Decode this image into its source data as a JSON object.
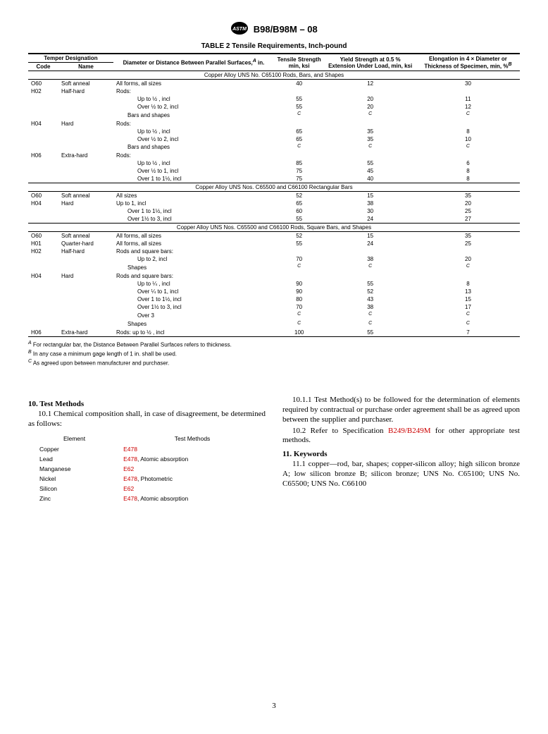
{
  "doc_title": "B98/B98M – 08",
  "table_title": "TABLE 2 Tensile Requirements, Inch-pound",
  "headers": {
    "temper": "Temper Designation",
    "code": "Code",
    "name": "Name",
    "diameter": "Diameter or Distance Between Parallel Surfaces,",
    "diameter_sup": "A",
    "diameter_unit": " in.",
    "tensile": "Tensile Strength min, ksi",
    "yield": "Yield Strength at 0.5 % Extension Under Load, min, ksi",
    "elong": "Elongation in 4 × Diameter or Thickness of Specimen, min, %",
    "elong_sup": "B"
  },
  "sections": [
    {
      "title": "Copper Alloy UNS No. C65100 Rods, Bars, and Shapes",
      "rows": [
        {
          "code": "O60",
          "name": "Soft anneal",
          "desc": "All forms, all sizes",
          "indent": 0,
          "t": "40",
          "y": "12",
          "e": "30"
        },
        {
          "code": "H02",
          "name": "Half-hard",
          "desc": "Rods:",
          "indent": 0,
          "t": "",
          "y": "",
          "e": ""
        },
        {
          "code": "",
          "name": "",
          "desc": "Up to ½ , incl",
          "indent": 1,
          "t": "55",
          "y": "20",
          "e": "11"
        },
        {
          "code": "",
          "name": "",
          "desc": "Over ½ to 2, incl",
          "indent": 1,
          "t": "55",
          "y": "20",
          "e": "12"
        },
        {
          "code": "",
          "name": "",
          "desc": "Bars and shapes",
          "indent": 0,
          "t": "C",
          "y": "C",
          "e": "C",
          "italic": true
        },
        {
          "code": "H04",
          "name": "Hard",
          "desc": "Rods:",
          "indent": 0,
          "t": "",
          "y": "",
          "e": ""
        },
        {
          "code": "",
          "name": "",
          "desc": "Up to ½ , incl",
          "indent": 1,
          "t": "65",
          "y": "35",
          "e": "8"
        },
        {
          "code": "",
          "name": "",
          "desc": "Over ½ to 2, incl",
          "indent": 1,
          "t": "65",
          "y": "35",
          "e": "10"
        },
        {
          "code": "",
          "name": "",
          "desc": "Bars and shapes",
          "indent": 0,
          "t": "C",
          "y": "C",
          "e": "C",
          "italic": true
        },
        {
          "code": "H06",
          "name": "Extra-hard",
          "desc": "Rods:",
          "indent": 0,
          "t": "",
          "y": "",
          "e": ""
        },
        {
          "code": "",
          "name": "",
          "desc": "Up to ½ , incl",
          "indent": 1,
          "t": "85",
          "y": "55",
          "e": "6"
        },
        {
          "code": "",
          "name": "",
          "desc": "Over ½ to 1, incl",
          "indent": 1,
          "t": "75",
          "y": "45",
          "e": "8"
        },
        {
          "code": "",
          "name": "",
          "desc": "Over 1 to 1½, incl",
          "indent": 1,
          "t": "75",
          "y": "40",
          "e": "8"
        }
      ]
    },
    {
      "title": "Copper Alloy UNS Nos. C65500 and C66100 Rectangular Bars",
      "rows": [
        {
          "code": "O60",
          "name": "Soft anneal",
          "desc": "All sizes",
          "indent": 0,
          "t": "52",
          "y": "15",
          "e": "35"
        },
        {
          "code": "H04",
          "name": "Hard",
          "desc": "Up to 1, incl",
          "indent": 0,
          "t": "65",
          "y": "38",
          "e": "20"
        },
        {
          "code": "",
          "name": "",
          "desc": "Over 1 to 1½, incl",
          "indent": 0,
          "t": "60",
          "y": "30",
          "e": "25"
        },
        {
          "code": "",
          "name": "",
          "desc": "Over 1½ to 3, incl",
          "indent": 0,
          "t": "55",
          "y": "24",
          "e": "27"
        }
      ]
    },
    {
      "title": "Copper Alloy UNS Nos. C65500 and C66100 Rods, Square Bars, and Shapes",
      "rows": [
        {
          "code": "O60",
          "name": "Soft anneal",
          "desc": "All forms, all sizes",
          "indent": 0,
          "t": "52",
          "y": "15",
          "e": "35"
        },
        {
          "code": "H01",
          "name": "Quarter-hard",
          "desc": "All forms, all sizes",
          "indent": 0,
          "t": "55",
          "y": "24",
          "e": "25"
        },
        {
          "code": "H02",
          "name": "Half-hard",
          "desc": "Rods and square bars:",
          "indent": 0,
          "t": "",
          "y": "",
          "e": ""
        },
        {
          "code": "",
          "name": "",
          "desc": "Up to 2, incl",
          "indent": 1,
          "t": "70",
          "y": "38",
          "e": "20"
        },
        {
          "code": "",
          "name": "",
          "desc": "Shapes",
          "indent": 0,
          "t": "C",
          "y": "C",
          "e": "C",
          "italic": true
        },
        {
          "code": "H04",
          "name": "Hard",
          "desc": "Rods and square bars:",
          "indent": 0,
          "t": "",
          "y": "",
          "e": ""
        },
        {
          "code": "",
          "name": "",
          "desc": "Up to ¼ , incl",
          "indent": 1,
          "t": "90",
          "y": "55",
          "e": "8"
        },
        {
          "code": "",
          "name": "",
          "desc": "Over ¼ to 1, incl",
          "indent": 1,
          "t": "90",
          "y": "52",
          "e": "13"
        },
        {
          "code": "",
          "name": "",
          "desc": "Over 1 to 1½, incl",
          "indent": 1,
          "t": "80",
          "y": "43",
          "e": "15"
        },
        {
          "code": "",
          "name": "",
          "desc": "Over 1½ to 3, incl",
          "indent": 1,
          "t": "70",
          "y": "38",
          "e": "17"
        },
        {
          "code": "",
          "name": "",
          "desc": "Over 3",
          "indent": 1,
          "t": "C",
          "y": "C",
          "e": "C",
          "italic": true
        },
        {
          "code": "",
          "name": "",
          "desc": "Shapes",
          "indent": 0,
          "t": "C",
          "y": "C",
          "e": "C",
          "italic": true
        },
        {
          "code": "H06",
          "name": "Extra-hard",
          "desc": "Rods: up to ½ , incl",
          "indent": 0,
          "t": "100",
          "y": "55",
          "e": "7"
        }
      ]
    }
  ],
  "footnotes": [
    {
      "sup": "A",
      "text": " For rectangular bar, the Distance Between Parallel Surfaces refers to thickness."
    },
    {
      "sup": "B",
      "text": " In any case a minimum gage length of 1 in. shall be used."
    },
    {
      "sup": "C",
      "text": " As agreed upon between manufacturer and purchaser."
    }
  ],
  "section10": {
    "head": "10. Test Methods",
    "p1": "10.1 Chemical composition shall, in case of disagreement, be determined as follows:",
    "elem_head": "Element",
    "method_head": "Test Methods",
    "elements": [
      {
        "e": "Copper",
        "m": "E478"
      },
      {
        "e": "Lead",
        "m": "E478",
        "suffix": ", Atomic absorption"
      },
      {
        "e": "Manganese",
        "m": "E62"
      },
      {
        "e": "Nickel",
        "m": "E478",
        "suffix": ", Photometric"
      },
      {
        "e": "Silicon",
        "m": "E62"
      },
      {
        "e": "Zinc",
        "m": "E478",
        "suffix": ", Atomic absorption"
      }
    ]
  },
  "section10_1_1": "10.1.1 Test Method(s) to be followed for the determination of elements required by contractual or purchase order agreement shall be as agreed upon between the supplier and purchaser.",
  "section10_2_a": "10.2 Refer to Specification ",
  "section10_2_link": "B249/B249M",
  "section10_2_b": " for other appropriate test methods.",
  "section11": {
    "head": "11. Keywords",
    "p": "11.1 copper—rod, bar, shapes; copper-silicon alloy; high silicon bronze A; low silicon bronze B; silicon bronze; UNS No. C65100; UNS No. C65500; UNS No. C66100"
  },
  "pagenum": "3"
}
